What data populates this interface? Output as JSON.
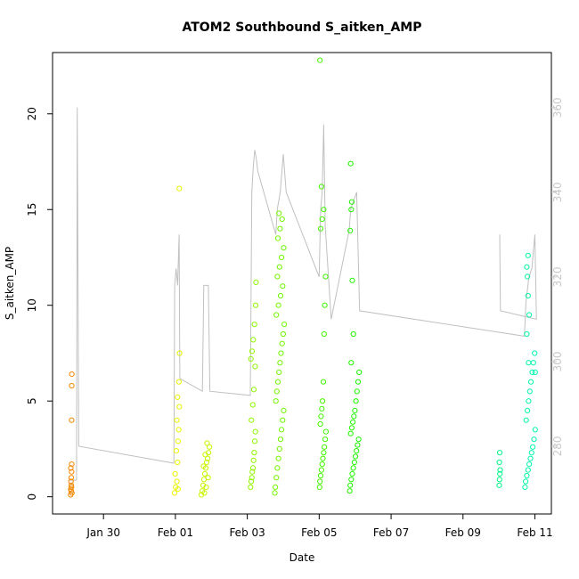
{
  "chart_data": {
    "type": "scatter",
    "title": "ATOM2 Southbound S_aitken_AMP",
    "xlabel": "Date",
    "ylabel": "S_aitken_AMP",
    "xlim": [
      "2022-01-28T14:00",
      "2022-02-11T11:00"
    ],
    "ylim": [
      -0.9,
      23.2
    ],
    "y2lim": [
      264,
      373
    ],
    "x_ticks": [
      {
        "date": "2022-01-30",
        "label": "Jan 30"
      },
      {
        "date": "2022-02-01",
        "label": "Feb 01"
      },
      {
        "date": "2022-02-03",
        "label": "Feb 03"
      },
      {
        "date": "2022-02-05",
        "label": "Feb 05"
      },
      {
        "date": "2022-02-07",
        "label": "Feb 07"
      },
      {
        "date": "2022-02-09",
        "label": "Feb 09"
      },
      {
        "date": "2022-02-11",
        "label": "Feb 11"
      }
    ],
    "y_ticks": [
      "0",
      "5",
      "10",
      "15",
      "20"
    ],
    "y2_ticks": [
      "280",
      "300",
      "320",
      "340",
      "360"
    ],
    "grid": false,
    "legend": "none",
    "point_style": "open-circle",
    "color_scale": "time (orange → yellow → green → cyan)",
    "line_color": "#c0c0c0",
    "right_axis_color": "#c8c8c8",
    "sessions": [
      {
        "start": "2022-01-29T02:00",
        "end": "2022-01-29T03:00",
        "points": [
          [
            0.1,
            0.1
          ],
          [
            0.2,
            0.4
          ],
          [
            0.4,
            0.3
          ],
          [
            0.6,
            0.5
          ],
          [
            0.3,
            0.8
          ],
          [
            0.5,
            1.0
          ],
          [
            0.7,
            1.3
          ],
          [
            0.2,
            1.5
          ],
          [
            0.8,
            1.7
          ],
          [
            0.5,
            0.6
          ],
          [
            0.9,
            0.2
          ],
          [
            0.7,
            4.0
          ],
          [
            0.8,
            5.8
          ],
          [
            0.85,
            6.4
          ]
        ]
      },
      {
        "start": "2022-01-31T23:00",
        "end": "2022-02-01T03:00",
        "points": [
          [
            0.1,
            0.2
          ],
          [
            0.3,
            0.5
          ],
          [
            0.5,
            0.8
          ],
          [
            0.2,
            1.2
          ],
          [
            0.6,
            1.8
          ],
          [
            0.4,
            2.4
          ],
          [
            0.7,
            2.9
          ],
          [
            0.8,
            3.5
          ],
          [
            0.5,
            4.0
          ],
          [
            0.9,
            4.7
          ],
          [
            0.6,
            5.2
          ],
          [
            0.85,
            6.0
          ],
          [
            0.95,
            7.5
          ],
          [
            0.7,
            0.4
          ],
          [
            0.9,
            16.1
          ]
        ]
      },
      {
        "start": "2022-02-01T17:00",
        "end": "2022-02-01T23:00",
        "points": [
          [
            0.05,
            0.1
          ],
          [
            0.15,
            0.3
          ],
          [
            0.25,
            0.6
          ],
          [
            0.35,
            0.9
          ],
          [
            0.45,
            1.2
          ],
          [
            0.55,
            1.5
          ],
          [
            0.65,
            1.8
          ],
          [
            0.75,
            2.0
          ],
          [
            0.85,
            2.3
          ],
          [
            0.95,
            2.6
          ],
          [
            0.4,
            0.2
          ],
          [
            0.6,
            0.5
          ],
          [
            0.8,
            1.0
          ],
          [
            0.3,
            1.6
          ],
          [
            0.5,
            2.2
          ],
          [
            0.7,
            2.8
          ]
        ]
      },
      {
        "start": "2022-02-03T02:00",
        "end": "2022-02-03T06:00",
        "points": [
          [
            0.05,
            0.5
          ],
          [
            0.15,
            0.8
          ],
          [
            0.25,
            1.0
          ],
          [
            0.35,
            1.3
          ],
          [
            0.45,
            1.5
          ],
          [
            0.55,
            1.9
          ],
          [
            0.65,
            2.3
          ],
          [
            0.75,
            2.9
          ],
          [
            0.85,
            3.4
          ],
          [
            0.2,
            4.0
          ],
          [
            0.4,
            4.8
          ],
          [
            0.6,
            5.6
          ],
          [
            0.8,
            6.8
          ],
          [
            0.1,
            7.2
          ],
          [
            0.3,
            7.6
          ],
          [
            0.5,
            8.2
          ],
          [
            0.7,
            9.0
          ],
          [
            0.9,
            10.0
          ],
          [
            0.95,
            11.2
          ]
        ]
      },
      {
        "start": "2022-02-03T18:00",
        "end": "2022-02-04T01:00",
        "points": [
          [
            0.05,
            0.2
          ],
          [
            0.1,
            0.5
          ],
          [
            0.2,
            1.0
          ],
          [
            0.3,
            1.5
          ],
          [
            0.4,
            2.0
          ],
          [
            0.5,
            2.5
          ],
          [
            0.6,
            3.0
          ],
          [
            0.7,
            3.5
          ],
          [
            0.8,
            4.0
          ],
          [
            0.9,
            4.5
          ],
          [
            0.15,
            5.0
          ],
          [
            0.25,
            5.5
          ],
          [
            0.35,
            6.0
          ],
          [
            0.45,
            6.5
          ],
          [
            0.55,
            7.0
          ],
          [
            0.65,
            7.5
          ],
          [
            0.75,
            8.0
          ],
          [
            0.85,
            8.5
          ],
          [
            0.95,
            9.0
          ],
          [
            0.2,
            9.5
          ],
          [
            0.4,
            10.0
          ],
          [
            0.6,
            10.5
          ],
          [
            0.8,
            11.0
          ],
          [
            0.3,
            11.5
          ],
          [
            0.5,
            12.0
          ],
          [
            0.7,
            12.5
          ],
          [
            0.9,
            13.0
          ],
          [
            0.35,
            13.5
          ],
          [
            0.55,
            14.0
          ],
          [
            0.75,
            14.5
          ],
          [
            0.45,
            14.8
          ]
        ]
      },
      {
        "start": "2022-02-05T00:00",
        "end": "2022-02-05T05:00",
        "points": [
          [
            0.05,
            0.5
          ],
          [
            0.1,
            0.8
          ],
          [
            0.2,
            1.1
          ],
          [
            0.3,
            1.4
          ],
          [
            0.4,
            1.7
          ],
          [
            0.5,
            2.0
          ],
          [
            0.6,
            2.3
          ],
          [
            0.7,
            2.6
          ],
          [
            0.8,
            3.0
          ],
          [
            0.9,
            3.4
          ],
          [
            0.15,
            3.8
          ],
          [
            0.25,
            4.2
          ],
          [
            0.35,
            4.6
          ],
          [
            0.45,
            5.0
          ],
          [
            0.55,
            6.0
          ],
          [
            0.65,
            8.5
          ],
          [
            0.75,
            10.0
          ],
          [
            0.85,
            11.5
          ],
          [
            0.2,
            14.0
          ],
          [
            0.4,
            14.5
          ],
          [
            0.6,
            15.0
          ],
          [
            0.3,
            16.2
          ],
          [
            0.1,
            22.8
          ]
        ]
      },
      {
        "start": "2022-02-05T20:00",
        "end": "2022-02-06T03:00",
        "points": [
          [
            0.05,
            0.3
          ],
          [
            0.1,
            0.6
          ],
          [
            0.2,
            0.9
          ],
          [
            0.3,
            1.2
          ],
          [
            0.4,
            1.5
          ],
          [
            0.5,
            1.8
          ],
          [
            0.6,
            2.1
          ],
          [
            0.7,
            2.4
          ],
          [
            0.8,
            2.7
          ],
          [
            0.9,
            3.0
          ],
          [
            0.15,
            3.3
          ],
          [
            0.25,
            3.6
          ],
          [
            0.35,
            3.9
          ],
          [
            0.45,
            4.2
          ],
          [
            0.55,
            4.5
          ],
          [
            0.65,
            5.0
          ],
          [
            0.75,
            5.5
          ],
          [
            0.85,
            6.0
          ],
          [
            0.95,
            6.5
          ],
          [
            0.2,
            7.0
          ],
          [
            0.4,
            8.5
          ],
          [
            0.3,
            11.3
          ],
          [
            0.1,
            13.9
          ],
          [
            0.2,
            15.0
          ],
          [
            0.25,
            15.4
          ],
          [
            0.15,
            17.4
          ]
        ]
      },
      {
        "start": "2022-02-10T00:00",
        "end": "2022-02-10T01:00",
        "points": [
          [
            0.2,
            0.6
          ],
          [
            0.4,
            0.9
          ],
          [
            0.6,
            1.2
          ],
          [
            0.8,
            1.4
          ],
          [
            0.3,
            1.8
          ],
          [
            0.5,
            2.3
          ]
        ]
      },
      {
        "start": "2022-02-10T17:00",
        "end": "2022-02-11T01:00",
        "points": [
          [
            0.05,
            0.5
          ],
          [
            0.1,
            0.8
          ],
          [
            0.2,
            1.1
          ],
          [
            0.3,
            1.4
          ],
          [
            0.4,
            1.7
          ],
          [
            0.5,
            2.0
          ],
          [
            0.6,
            2.3
          ],
          [
            0.7,
            2.6
          ],
          [
            0.8,
            3.0
          ],
          [
            0.9,
            3.5
          ],
          [
            0.15,
            4.0
          ],
          [
            0.25,
            4.5
          ],
          [
            0.35,
            5.0
          ],
          [
            0.45,
            5.5
          ],
          [
            0.55,
            6.0
          ],
          [
            0.65,
            6.5
          ],
          [
            0.75,
            7.0
          ],
          [
            0.85,
            7.5
          ],
          [
            0.2,
            8.5
          ],
          [
            0.4,
            9.5
          ],
          [
            0.3,
            10.5
          ],
          [
            0.25,
            11.5
          ],
          [
            0.2,
            12.0
          ],
          [
            0.3,
            12.6
          ],
          [
            0.35,
            7.0
          ],
          [
            0.9,
            6.5
          ]
        ]
      }
    ],
    "line_series": {
      "axis": "right",
      "points": [
        [
          "2022-01-29T01:00",
          272
        ],
        [
          "2022-01-29T06:00",
          272
        ],
        [
          "2022-01-29T06:30",
          360
        ],
        [
          "2022-01-29T07:30",
          280
        ],
        [
          "2022-01-31T23:00",
          276
        ],
        [
          "2022-01-31T23:30",
          318
        ],
        [
          "2022-02-01T00:30",
          322
        ],
        [
          "2022-02-01T01:30",
          318
        ],
        [
          "2022-02-01T02:30",
          330
        ],
        [
          "2022-02-01T03:00",
          296
        ],
        [
          "2022-02-01T18:00",
          293
        ],
        [
          "2022-02-01T19:00",
          318
        ],
        [
          "2022-02-01T22:00",
          318
        ],
        [
          "2022-02-01T23:00",
          293
        ],
        [
          "2022-02-03T02:00",
          292
        ],
        [
          "2022-02-03T03:00",
          340
        ],
        [
          "2022-02-03T04:00",
          346
        ],
        [
          "2022-02-03T05:00",
          350
        ],
        [
          "2022-02-03T06:00",
          348
        ],
        [
          "2022-02-03T07:00",
          345
        ],
        [
          "2022-02-03T19:00",
          330
        ],
        [
          "2022-02-03T20:00",
          336
        ],
        [
          "2022-02-03T22:00",
          340
        ],
        [
          "2022-02-04T00:00",
          349
        ],
        [
          "2022-02-04T02:00",
          340
        ],
        [
          "2022-02-05T00:00",
          320
        ],
        [
          "2022-02-05T01:00",
          336
        ],
        [
          "2022-02-05T02:00",
          340
        ],
        [
          "2022-02-05T03:00",
          356
        ],
        [
          "2022-02-05T04:00",
          332
        ],
        [
          "2022-02-05T08:00",
          310
        ],
        [
          "2022-02-05T20:00",
          331
        ],
        [
          "2022-02-05T21:00",
          336
        ],
        [
          "2022-02-05T23:00",
          338
        ],
        [
          "2022-02-06T01:00",
          340
        ],
        [
          "2022-02-06T03:00",
          312
        ],
        [
          "2022-02-10T17:00",
          306
        ],
        [
          "2022-02-10T18:00",
          314
        ],
        [
          "2022-02-10T20:00",
          320
        ],
        [
          "2022-02-10T22:00",
          322
        ],
        [
          "2022-02-11T00:00",
          330
        ],
        [
          "2022-02-11T01:00",
          310
        ],
        [
          "2022-02-10T01:00",
          312
        ],
        [
          "2022-02-10T00:30",
          330
        ]
      ]
    }
  }
}
